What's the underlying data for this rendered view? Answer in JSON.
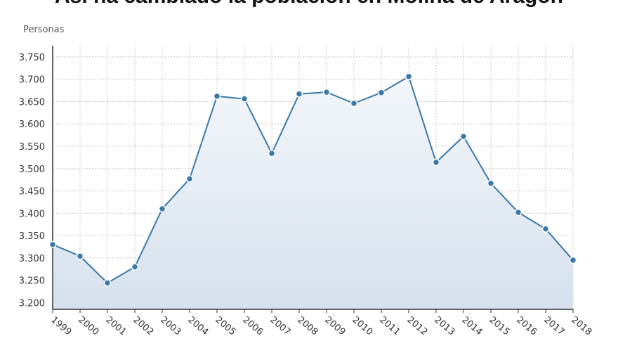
{
  "chart_data": {
    "type": "area",
    "title": "Así ha cambiado la población en Molina de Aragón",
    "ylabel": "Personas",
    "xlabel": "",
    "ylim": [
      3185,
      3775
    ],
    "y_ticks": [
      "3.200",
      "3.250",
      "3.300",
      "3.350",
      "3.400",
      "3.450",
      "3.500",
      "3.550",
      "3.600",
      "3.650",
      "3.700",
      "3.750"
    ],
    "y_tick_values": [
      3200,
      3250,
      3300,
      3350,
      3400,
      3450,
      3500,
      3550,
      3600,
      3650,
      3700,
      3750
    ],
    "categories": [
      "1999",
      "2000",
      "2001",
      "2002",
      "2003",
      "2004",
      "2005",
      "2006",
      "2007",
      "2008",
      "2009",
      "2010",
      "2011",
      "2012",
      "2013",
      "2014",
      "2015",
      "2016",
      "2017",
      "2018"
    ],
    "values": [
      3330,
      3304,
      3244,
      3280,
      3410,
      3477,
      3662,
      3656,
      3534,
      3667,
      3671,
      3646,
      3670,
      3706,
      3514,
      3572,
      3467,
      3402,
      3365,
      3295
    ],
    "grid": true,
    "colors": {
      "line": "#3a78a8",
      "marker": "#3a78a8",
      "fill_top": "#e8eef6",
      "fill_bottom": "#d8e2ee",
      "grid": "#c8c8c8",
      "axis": "#333333"
    }
  }
}
